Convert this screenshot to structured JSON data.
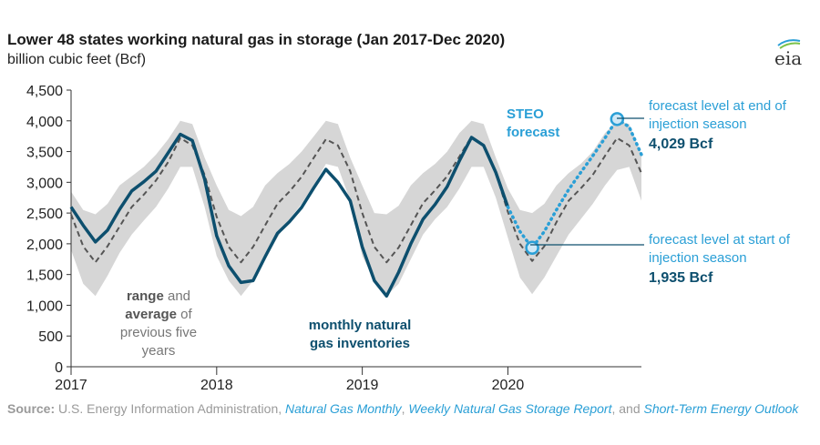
{
  "header": {
    "title": "Lower 48 states working natural gas in storage (Jan 2017-Dec 2020)",
    "subtitle": "billion cubic feet (Bcf)",
    "logo_text": "eia"
  },
  "annotations": {
    "steo_line1": "STEO",
    "steo_line2": "forecast",
    "end_line1": "forecast level at end of",
    "end_line2": "injection season",
    "end_value": "4,029 Bcf",
    "start_line1": "forecast level at start of",
    "start_line2": "injection season",
    "start_value": "1,935 Bcf",
    "range_line1_bold": "range",
    "range_line1_rest": " and",
    "range_line2_bold": "average",
    "range_line2_rest": " of",
    "range_line3": "previous five",
    "range_line4": "years",
    "monthly_line1": "monthly natural",
    "monthly_line2": "gas inventories"
  },
  "source": {
    "label": "Source:",
    "text1": " U.S. Energy Information Administration, ",
    "link1": "Natural Gas Monthly",
    "text2": ", ",
    "link2": "Weekly Natural Gas Storage Report",
    "text3": ", and ",
    "link3": "Short-Term Energy Outlook"
  },
  "colors": {
    "actual": "#0d4f6e",
    "forecast": "#2a9fd6",
    "average": "#555555",
    "range": "#d6d6d6",
    "steo_label": "#2a9fd6",
    "end_value": "#0d4f6e"
  },
  "chart_data": {
    "type": "line",
    "title": "Lower 48 states working natural gas in storage (Jan 2017-Dec 2020)",
    "ylabel": "billion cubic feet (Bcf)",
    "xlim": [
      2017.0,
      2020.917
    ],
    "ylim": [
      0,
      4500
    ],
    "yticks": [
      0,
      500,
      1000,
      1500,
      2000,
      2500,
      3000,
      3500,
      4000,
      4500
    ],
    "ytick_labels": [
      "0",
      "500",
      "1,000",
      "1,500",
      "2,000",
      "2,500",
      "3,000",
      "3,500",
      "4,000",
      "4,500"
    ],
    "xticks": [
      2017,
      2018,
      2019,
      2020
    ],
    "xtick_labels": [
      "2017",
      "2018",
      "2019",
      "2020"
    ],
    "grid": false,
    "series": [
      {
        "name": "monthly natural gas inventories",
        "style": "solid",
        "x": [
          2017.0,
          2017.083,
          2017.167,
          2017.25,
          2017.333,
          2017.417,
          2017.5,
          2017.583,
          2017.667,
          2017.75,
          2017.833,
          2017.917,
          2018.0,
          2018.083,
          2018.167,
          2018.25,
          2018.333,
          2018.417,
          2018.5,
          2018.583,
          2018.667,
          2018.75,
          2018.833,
          2018.917,
          2019.0,
          2019.083,
          2019.167,
          2019.25,
          2019.333,
          2019.417,
          2019.5,
          2019.583,
          2019.667,
          2019.75,
          2019.833,
          2019.917,
          2020.0
        ],
        "values": [
          2600,
          2300,
          2030,
          2220,
          2560,
          2860,
          3010,
          3180,
          3480,
          3780,
          3680,
          3050,
          2130,
          1640,
          1370,
          1400,
          1790,
          2170,
          2360,
          2590,
          2910,
          3210,
          3000,
          2700,
          1950,
          1400,
          1150,
          1540,
          2000,
          2400,
          2640,
          2930,
          3350,
          3730,
          3600,
          3160,
          2600
        ]
      },
      {
        "name": "STEO forecast",
        "style": "dotted",
        "x": [
          2020.0,
          2020.083,
          2020.167,
          2020.25,
          2020.333,
          2020.417,
          2020.5,
          2020.583,
          2020.667,
          2020.75,
          2020.833,
          2020.917
        ],
        "values": [
          2600,
          2200,
          1935,
          2200,
          2550,
          2880,
          3160,
          3430,
          3720,
          4029,
          3900,
          3450
        ]
      },
      {
        "name": "average of previous five years",
        "style": "dashed",
        "x": [
          2017.0,
          2017.083,
          2017.167,
          2017.25,
          2017.333,
          2017.417,
          2017.5,
          2017.583,
          2017.667,
          2017.75,
          2017.833,
          2017.917,
          2018.0,
          2018.083,
          2018.167,
          2018.25,
          2018.333,
          2018.417,
          2018.5,
          2018.583,
          2018.667,
          2018.75,
          2018.833,
          2018.917,
          2019.0,
          2019.083,
          2019.167,
          2019.25,
          2019.333,
          2019.417,
          2019.5,
          2019.583,
          2019.667,
          2019.75,
          2019.833,
          2019.917,
          2020.0,
          2020.083,
          2020.167,
          2020.25,
          2020.333,
          2020.417,
          2020.5,
          2020.583,
          2020.667,
          2020.75,
          2020.833,
          2020.917
        ],
        "values": [
          2480,
          1960,
          1700,
          1960,
          2280,
          2600,
          2800,
          3030,
          3330,
          3720,
          3600,
          3120,
          2440,
          1950,
          1700,
          1950,
          2300,
          2650,
          2850,
          3090,
          3400,
          3700,
          3600,
          3180,
          2500,
          1950,
          1700,
          1940,
          2300,
          2660,
          2870,
          3100,
          3420,
          3740,
          3600,
          3150,
          2520,
          2000,
          1720,
          1960,
          2350,
          2700,
          2900,
          3120,
          3430,
          3720,
          3600,
          3150
        ]
      },
      {
        "name": "range of previous five years",
        "style": "band",
        "x": [
          2017.0,
          2017.083,
          2017.167,
          2017.25,
          2017.333,
          2017.417,
          2017.5,
          2017.583,
          2017.667,
          2017.75,
          2017.833,
          2017.917,
          2018.0,
          2018.083,
          2018.167,
          2018.25,
          2018.333,
          2018.417,
          2018.5,
          2018.583,
          2018.667,
          2018.75,
          2018.833,
          2018.917,
          2019.0,
          2019.083,
          2019.167,
          2019.25,
          2019.333,
          2019.417,
          2019.5,
          2019.583,
          2019.667,
          2019.75,
          2019.833,
          2019.917,
          2020.0,
          2020.083,
          2020.167,
          2020.25,
          2020.333,
          2020.417,
          2020.5,
          2020.583,
          2020.667,
          2020.75,
          2020.833,
          2020.917
        ],
        "low": [
          1900,
          1350,
          1150,
          1480,
          1850,
          2150,
          2380,
          2600,
          2900,
          3250,
          3250,
          2600,
          1800,
          1400,
          1150,
          1400,
          1750,
          2100,
          2400,
          2650,
          2950,
          3300,
          3250,
          2700,
          1800,
          1400,
          1150,
          1350,
          1750,
          2150,
          2400,
          2600,
          2900,
          3250,
          3250,
          2750,
          2100,
          1450,
          1180,
          1450,
          1800,
          2150,
          2400,
          2650,
          2950,
          3200,
          3250,
          2700
        ],
        "high": [
          2850,
          2550,
          2480,
          2650,
          2950,
          3100,
          3250,
          3450,
          3700,
          4000,
          3950,
          3400,
          2950,
          2550,
          2450,
          2600,
          2950,
          3150,
          3300,
          3500,
          3750,
          4000,
          3950,
          3400,
          2950,
          2500,
          2480,
          2620,
          2950,
          3150,
          3300,
          3500,
          3800,
          4000,
          3950,
          3400,
          2900,
          2550,
          2500,
          2650,
          2950,
          3150,
          3300,
          3500,
          3800,
          4000,
          3950,
          3450
        ]
      }
    ],
    "markers": [
      {
        "label": "forecast level at start of injection season",
        "x": 2020.167,
        "value": 1935
      },
      {
        "label": "forecast level at end of injection season",
        "x": 2020.75,
        "value": 4029
      }
    ]
  }
}
